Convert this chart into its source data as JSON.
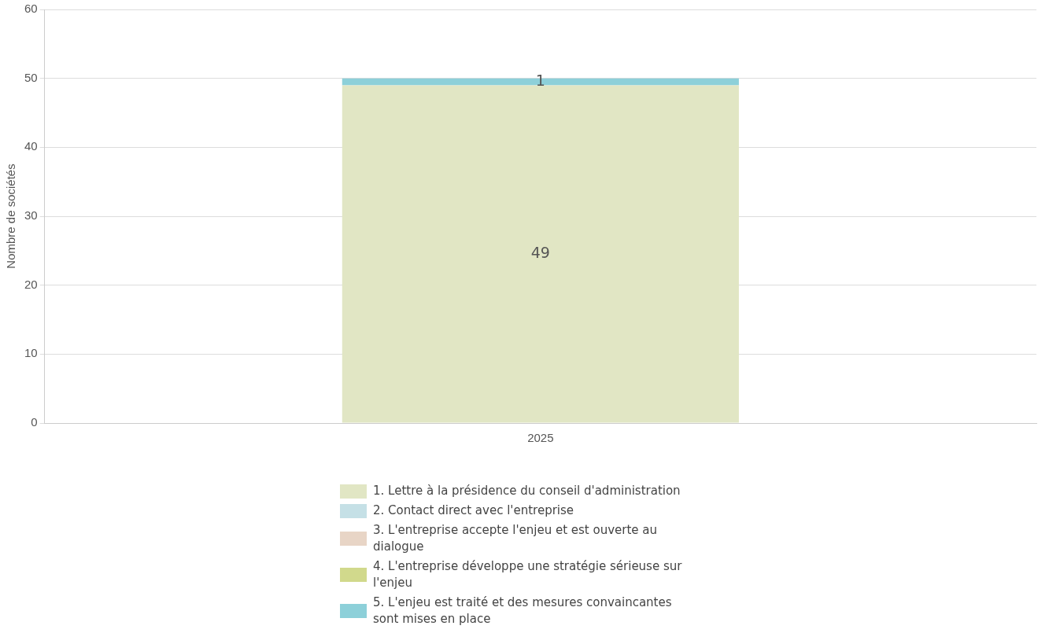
{
  "chart_data": {
    "type": "bar",
    "stacked": true,
    "ylabel": "Nombre de sociétés",
    "categories": [
      "2025"
    ],
    "ylim": [
      0,
      60
    ],
    "yticks": [
      0,
      10,
      20,
      30,
      40,
      50,
      60
    ],
    "grid": "y",
    "legend": "bottom",
    "series": [
      {
        "name": "1. Lettre à la présidence du conseil d'administration",
        "color": "#e1e6c4",
        "values": [
          49
        ],
        "value_labels": [
          "49"
        ]
      },
      {
        "name": "2. Contact direct avec l'entreprise",
        "color": "#c5e0e6",
        "values": [
          0
        ],
        "value_labels": [
          null
        ]
      },
      {
        "name": "3. L'entreprise accepte l'enjeu et est ouverte au dialogue",
        "color": "#e8d5c6",
        "values": [
          0
        ],
        "value_labels": [
          null
        ]
      },
      {
        "name": "4. L'entreprise développe une stratégie sérieuse sur l'enjeu",
        "color": "#d1d98c",
        "values": [
          0
        ],
        "value_labels": [
          null
        ]
      },
      {
        "name": "5. L'enjeu est traité et des mesures convaincantes sont mises en place",
        "color": "#8dd0d9",
        "values": [
          1
        ],
        "value_labels": [
          "1"
        ]
      }
    ]
  }
}
